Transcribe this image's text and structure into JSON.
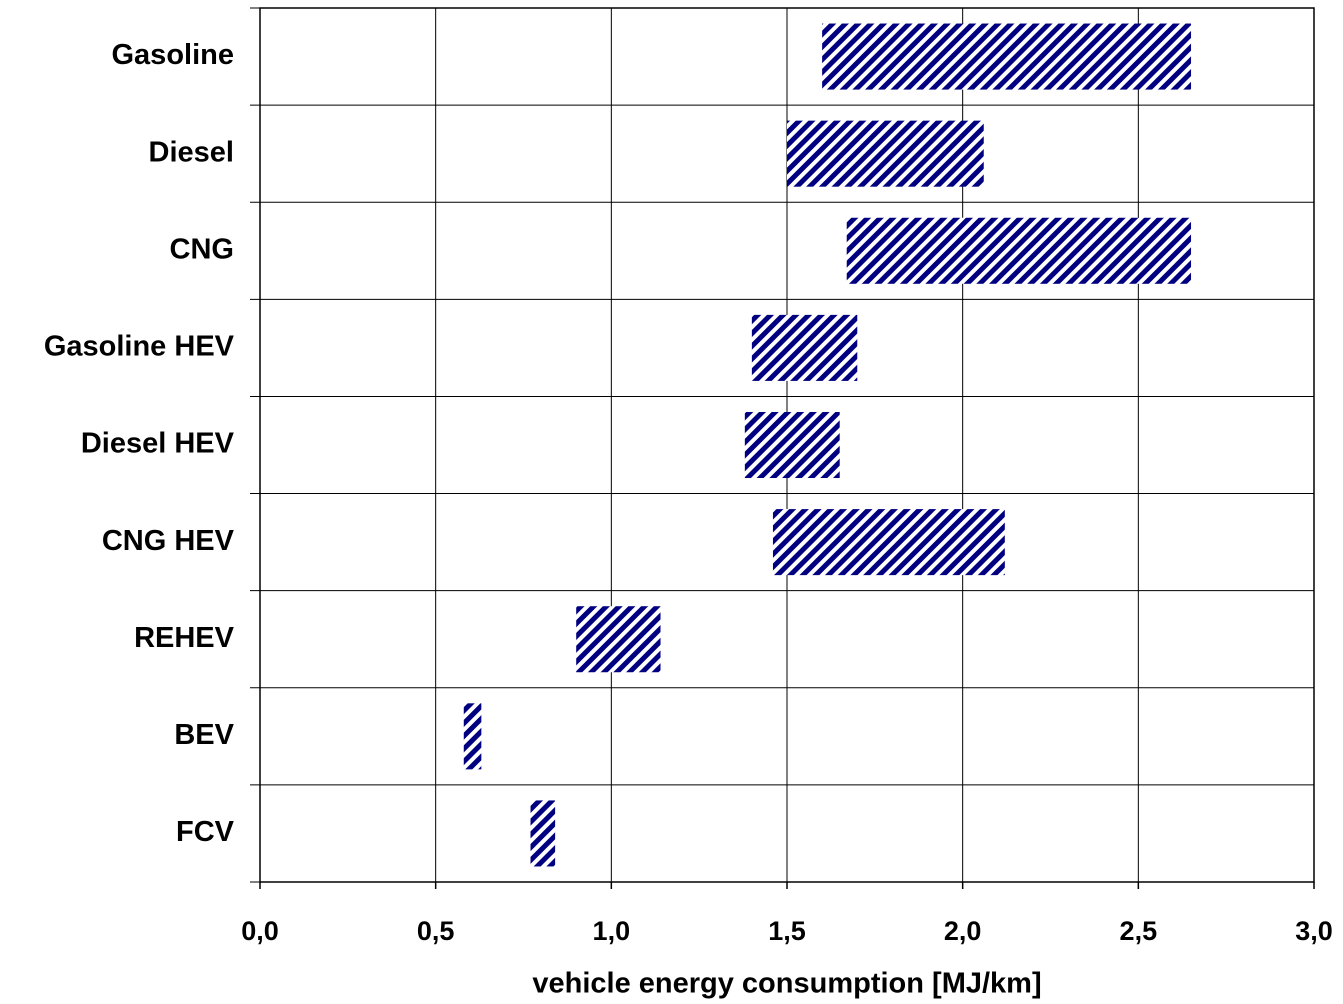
{
  "chart_data": {
    "type": "floating-bar",
    "x_label": "vehicle energy consumption [MJ/km]",
    "categories": [
      "Gasoline",
      "Diesel",
      "CNG",
      "Gasoline HEV",
      "Diesel HEV",
      "CNG HEV",
      "REHEV",
      "BEV",
      "FCV"
    ],
    "low": [
      1.6,
      1.5,
      1.67,
      1.4,
      1.38,
      1.46,
      0.9,
      0.58,
      0.77
    ],
    "high": [
      2.65,
      2.06,
      2.65,
      1.7,
      1.65,
      2.12,
      1.14,
      0.63,
      0.84
    ],
    "color": "#000080",
    "xlim": [
      0,
      3
    ],
    "xticks": [
      {
        "value": 0,
        "label": "0,0"
      },
      {
        "value": 0.5,
        "label": "0,5"
      },
      {
        "value": 1,
        "label": "1,0"
      },
      {
        "value": 1.5,
        "label": "1,5"
      },
      {
        "value": 2,
        "label": "2,0"
      },
      {
        "value": 2.5,
        "label": "2,5"
      },
      {
        "value": 3,
        "label": "3,0"
      }
    ],
    "grid": true
  }
}
